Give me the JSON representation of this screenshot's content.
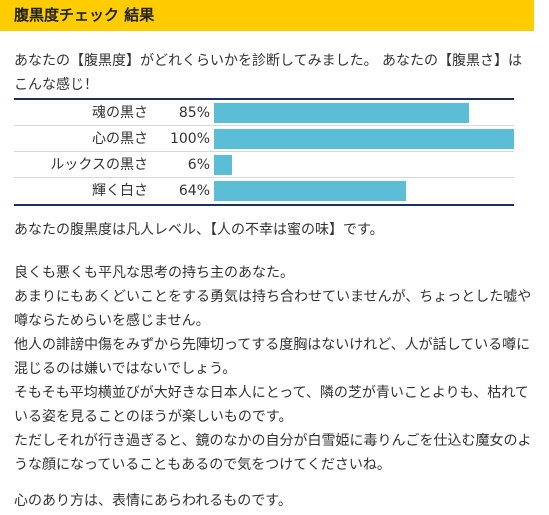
{
  "header": {
    "title": "腹黒度チェック 結果"
  },
  "intro": {
    "text": "あなたの【腹黒度】がどれくらいかを診断してみました。 あなたの【腹黒さ】はこんな感じ！"
  },
  "meter": {
    "bar_color": "#5bbdd6",
    "rows": [
      {
        "label": "魂の黒さ",
        "value_text": "85%",
        "percent": 85
      },
      {
        "label": "心の黒さ",
        "value_text": "100%",
        "percent": 100
      },
      {
        "label": "ルックスの黒さ",
        "value_text": "6%",
        "percent": 6
      },
      {
        "label": "輝く白さ",
        "value_text": "64%",
        "percent": 64
      }
    ]
  },
  "summary": {
    "text": "あなたの腹黒度は凡人レベル、【人の不幸は蜜の味】です。"
  },
  "body": {
    "lines": [
      "良くも悪くも平凡な思考の持ち主のあなた。",
      "あまりにもあくどいことをする勇気は持ち合わせていませんが、ちょっとした嘘や噂ならためらいを感じません。",
      "他人の誹謗中傷をみずから先陣切ってする度胸はないけれど、人が話している噂に混じるのは嫌いではないでしょう。",
      "そもそも平均横並びが大好きな日本人にとって、隣の芝が青いことよりも、枯れている姿を見ることのほうが楽しいものです。",
      "ただしそれが行き過ぎると、鏡のなかの自分が白雪姫に毒りんごを仕込む魔女のような顔になっていることもあるので気をつけてくださいね。"
    ]
  },
  "closing": {
    "text": "心のあり方は、表情にあらわれるものです。"
  }
}
